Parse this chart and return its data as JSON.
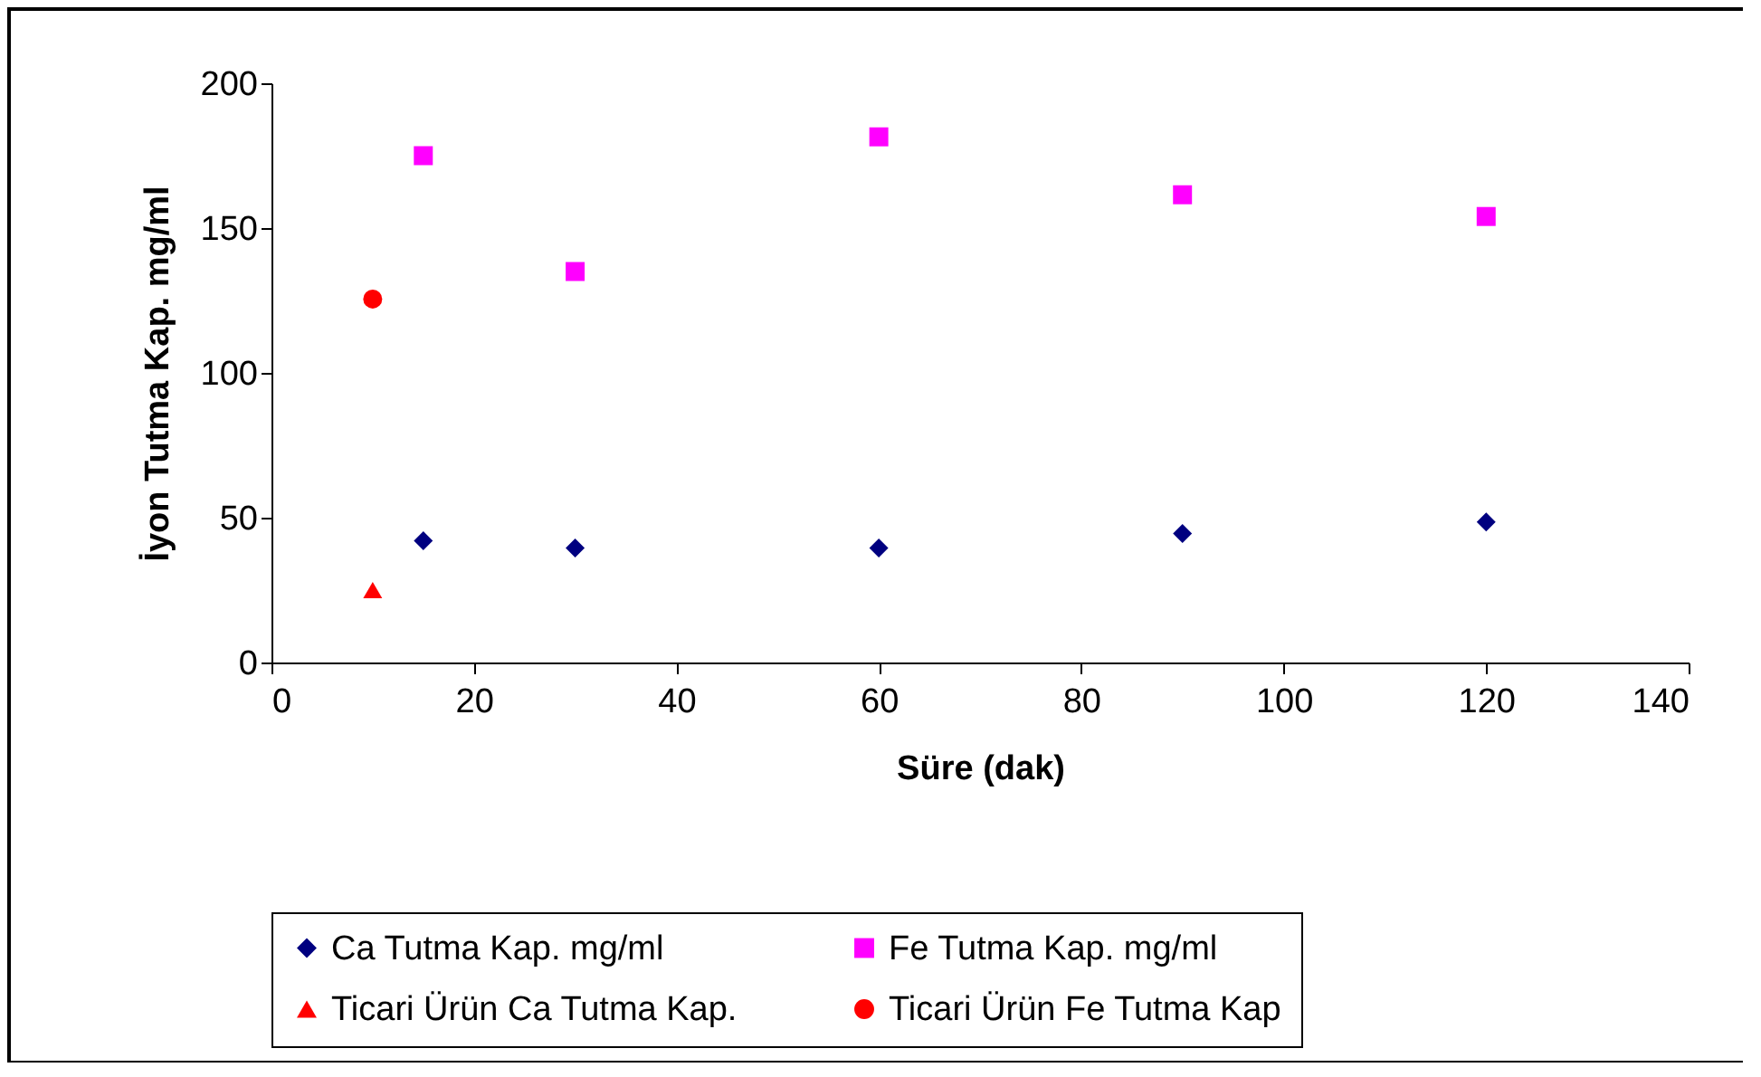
{
  "chart_data": {
    "type": "scatter",
    "xlabel": "Süre (dak)",
    "ylabel": "İyon Tutma Kap. mg/ml",
    "xlim": [
      0,
      140
    ],
    "xticks": [
      0,
      20,
      40,
      60,
      80,
      100,
      120,
      140
    ],
    "ylim": [
      0,
      200
    ],
    "yticks": [
      0,
      50,
      100,
      150,
      200
    ],
    "grid": false,
    "legend": "bottom",
    "series": [
      {
        "name": "Ca Tutma Kap. mg/ml",
        "color": "#000080",
        "marker": "diamond",
        "x": [
          15,
          30,
          60,
          90,
          120
        ],
        "values": [
          42,
          39.5,
          39.5,
          44.5,
          48.5
        ]
      },
      {
        "name": "Fe Tutma Kap. mg/ml",
        "color": "#ff00ff",
        "marker": "square",
        "x": [
          15,
          30,
          60,
          90,
          120
        ],
        "values": [
          175,
          135,
          181.5,
          161.5,
          154
        ]
      },
      {
        "name": "Ticari Ürün Ca Tutma Kap.",
        "color": "#ff0000",
        "marker": "triangle",
        "x": [
          10
        ],
        "values": [
          25
        ]
      },
      {
        "name": "Ticari Ürün Fe Tutma Kap",
        "color": "#ff0000",
        "marker": "circle",
        "x": [
          10
        ],
        "values": [
          125.5
        ]
      }
    ]
  }
}
